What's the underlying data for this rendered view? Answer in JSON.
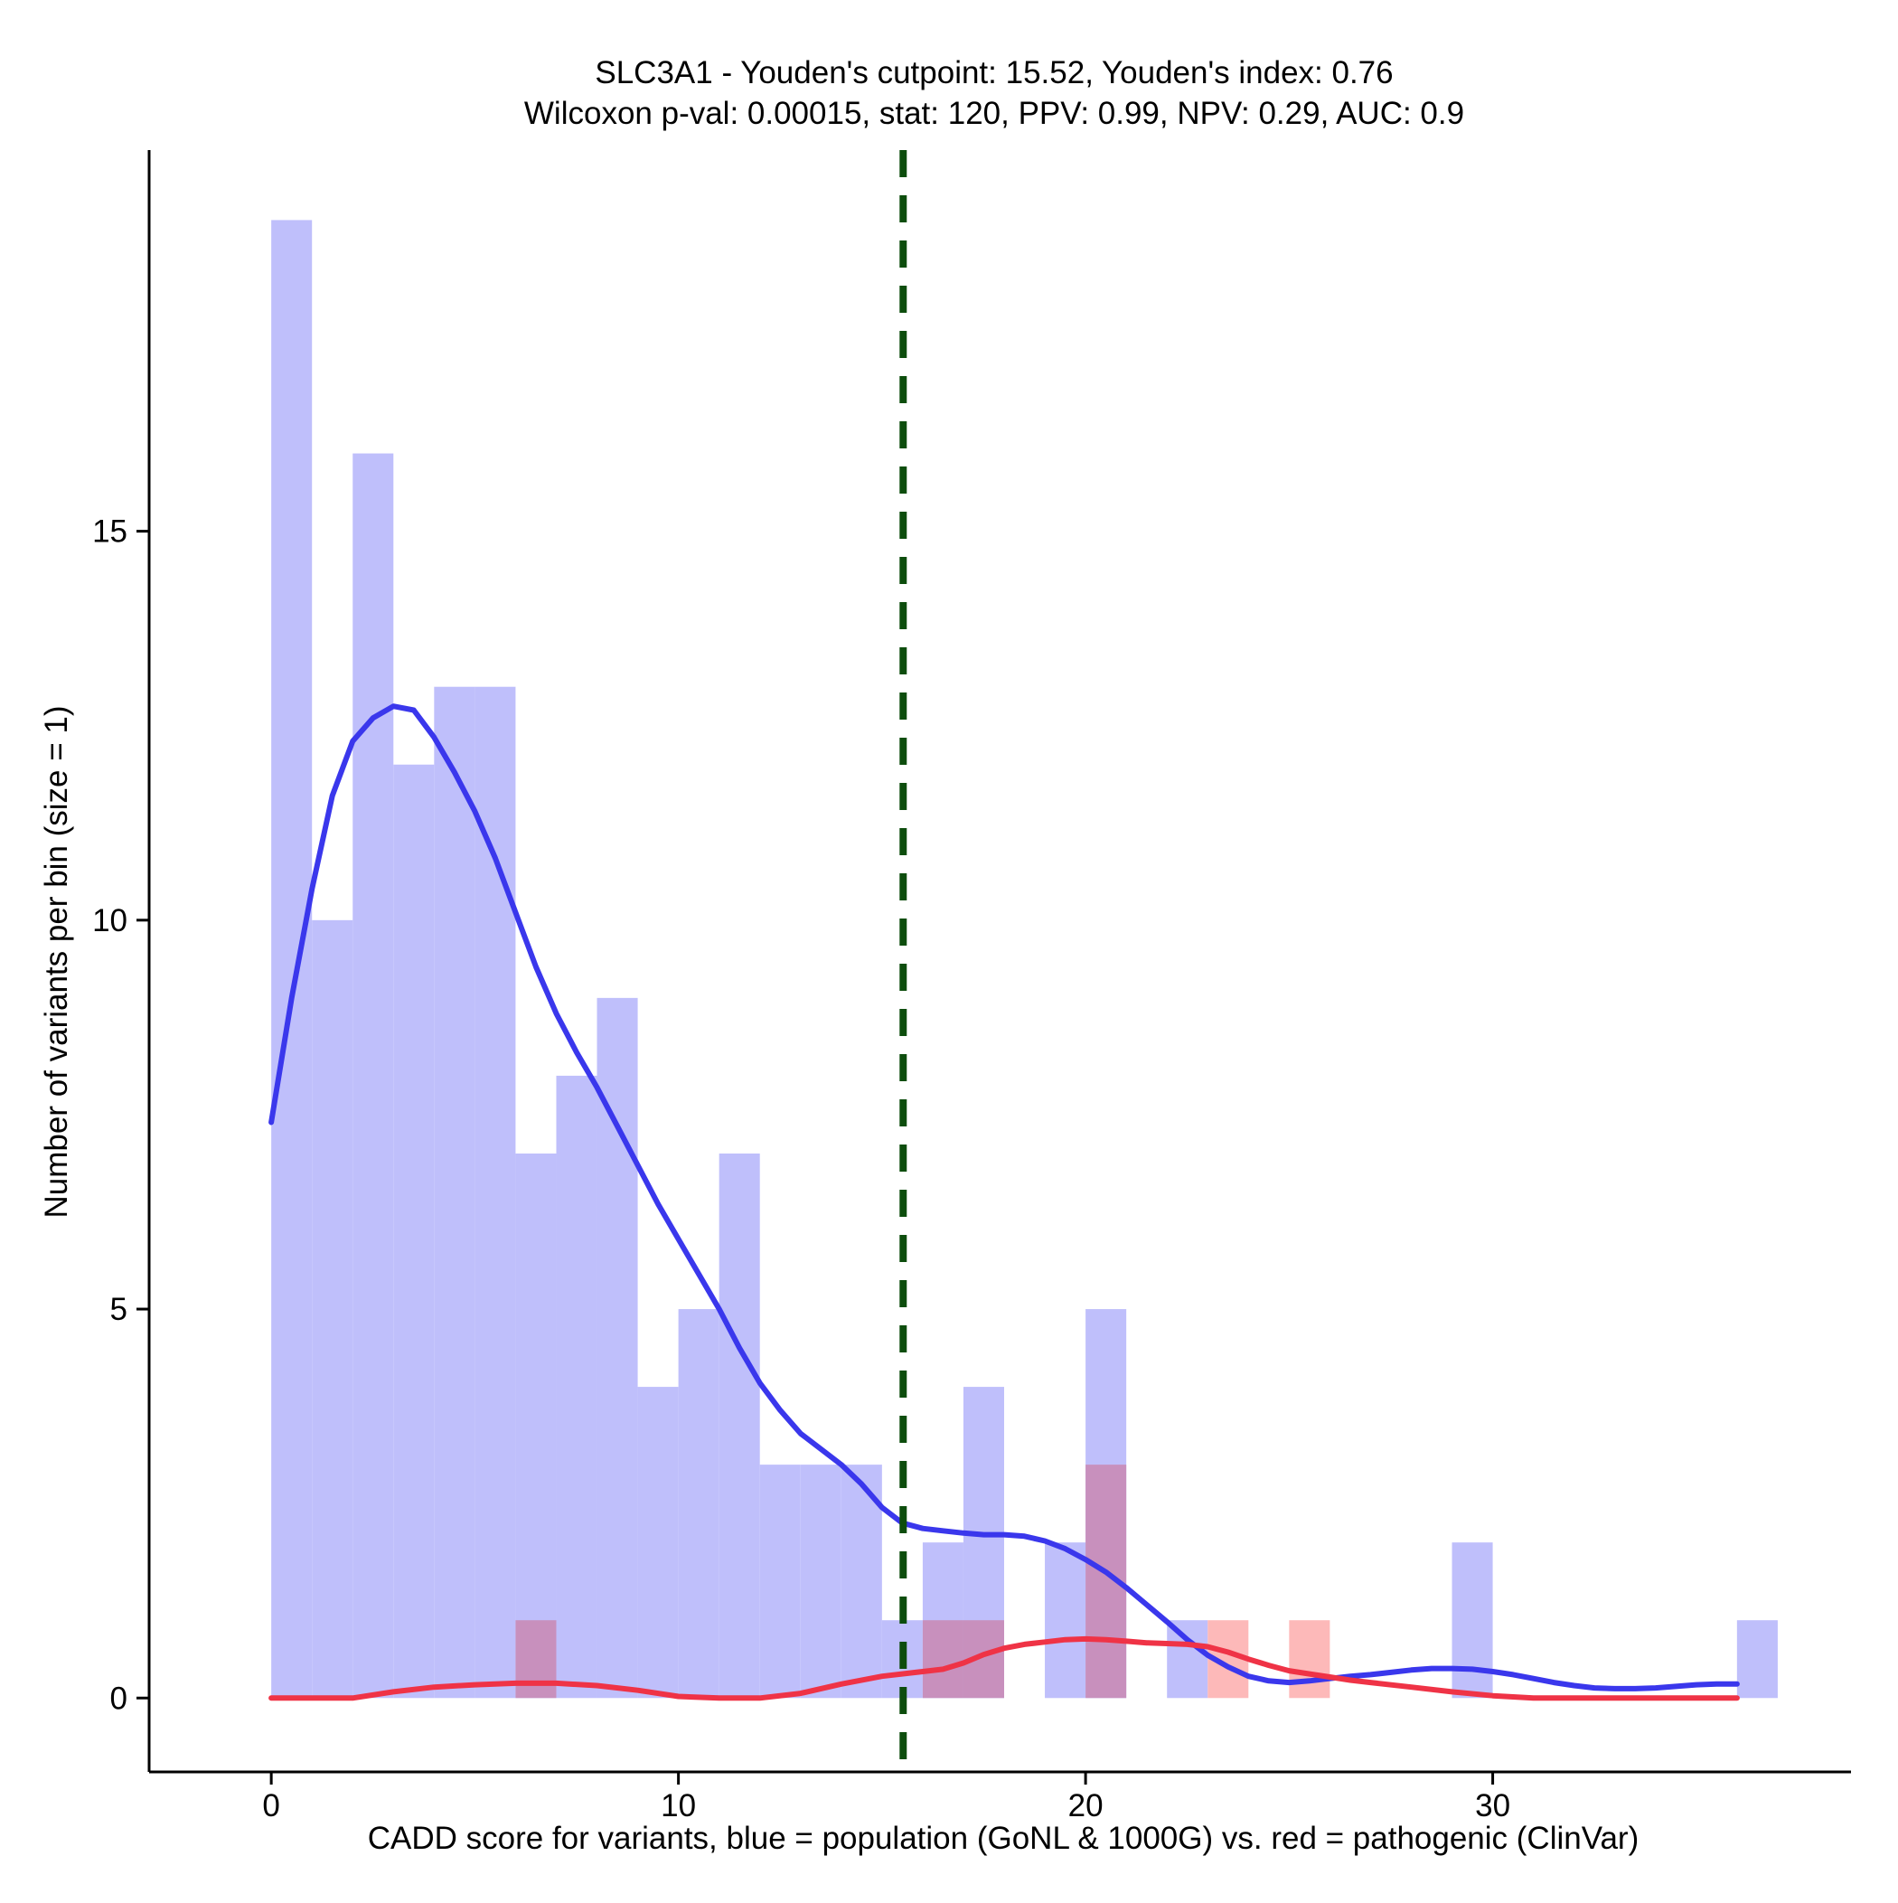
{
  "chart_data": {
    "type": "histogram",
    "title_line1": "SLC3A1 - Youden's cutpoint: 15.52, Youden's index: 0.76",
    "title_line2": "Wilcoxon p-val: 0.00015, stat: 120, PPV: 0.99, NPV: 0.29, AUC: 0.9",
    "xlabel": "CADD score for variants, blue = population (GoNL & 1000G) vs. red = pathogenic (ClinVar)",
    "ylabel": "Number of variants per bin (size = 1)",
    "xlim": [
      -3,
      38.8
    ],
    "ylim": [
      -0.95,
      19.9
    ],
    "x_ticks": [
      0,
      10,
      20,
      30
    ],
    "y_ticks": [
      0,
      5,
      10,
      15
    ],
    "cutpoint": 15.52,
    "bin_size": 1,
    "colors": {
      "population_bar": "#bfbffb",
      "pathogenic_bar": "#fdb9b9",
      "overlap_bar": "#c890bd",
      "population_line": "#3a37ec",
      "pathogenic_line": "#ef3346",
      "cutpoint_line": "#0d4d0d",
      "axis": "#000000"
    },
    "series": [
      {
        "name": "population (GoNL & 1000G)",
        "bins": [
          {
            "x0": 0,
            "count": 19
          },
          {
            "x0": 1,
            "count": 10
          },
          {
            "x0": 2,
            "count": 16
          },
          {
            "x0": 3,
            "count": 12
          },
          {
            "x0": 4,
            "count": 13
          },
          {
            "x0": 5,
            "count": 13
          },
          {
            "x0": 6,
            "count": 7
          },
          {
            "x0": 7,
            "count": 8
          },
          {
            "x0": 8,
            "count": 9
          },
          {
            "x0": 9,
            "count": 4
          },
          {
            "x0": 10,
            "count": 5
          },
          {
            "x0": 11,
            "count": 7
          },
          {
            "x0": 12,
            "count": 3
          },
          {
            "x0": 13,
            "count": 3
          },
          {
            "x0": 14,
            "count": 3
          },
          {
            "x0": 15,
            "count": 1
          },
          {
            "x0": 16,
            "count": 2
          },
          {
            "x0": 17,
            "count": 4
          },
          {
            "x0": 19,
            "count": 2
          },
          {
            "x0": 20,
            "count": 5
          },
          {
            "x0": 22,
            "count": 1
          },
          {
            "x0": 29,
            "count": 2
          },
          {
            "x0": 36,
            "count": 1
          }
        ],
        "density_curve": [
          [
            0,
            7.4
          ],
          [
            0.5,
            9.0
          ],
          [
            1.0,
            10.4
          ],
          [
            1.5,
            11.6
          ],
          [
            2.0,
            12.3
          ],
          [
            2.5,
            12.6
          ],
          [
            3.0,
            12.75
          ],
          [
            3.5,
            12.7
          ],
          [
            4.0,
            12.35
          ],
          [
            4.5,
            11.9
          ],
          [
            5.0,
            11.4
          ],
          [
            5.5,
            10.8
          ],
          [
            6.0,
            10.1
          ],
          [
            6.5,
            9.4
          ],
          [
            7.0,
            8.8
          ],
          [
            7.5,
            8.3
          ],
          [
            8.0,
            7.85
          ],
          [
            8.5,
            7.35
          ],
          [
            9.0,
            6.85
          ],
          [
            9.5,
            6.35
          ],
          [
            10.0,
            5.9
          ],
          [
            10.5,
            5.45
          ],
          [
            11.0,
            5.0
          ],
          [
            11.5,
            4.5
          ],
          [
            12.0,
            4.05
          ],
          [
            12.5,
            3.7
          ],
          [
            13.0,
            3.4
          ],
          [
            13.5,
            3.2
          ],
          [
            14.0,
            3.0
          ],
          [
            14.5,
            2.75
          ],
          [
            15.0,
            2.45
          ],
          [
            15.5,
            2.25
          ],
          [
            16.0,
            2.18
          ],
          [
            16.5,
            2.15
          ],
          [
            17.0,
            2.12
          ],
          [
            17.5,
            2.1
          ],
          [
            18.0,
            2.1
          ],
          [
            18.5,
            2.08
          ],
          [
            19.0,
            2.02
          ],
          [
            19.5,
            1.92
          ],
          [
            20.0,
            1.78
          ],
          [
            20.5,
            1.62
          ],
          [
            21.0,
            1.42
          ],
          [
            21.5,
            1.2
          ],
          [
            22.0,
            0.98
          ],
          [
            22.5,
            0.75
          ],
          [
            23.0,
            0.55
          ],
          [
            23.5,
            0.4
          ],
          [
            24.0,
            0.28
          ],
          [
            24.5,
            0.22
          ],
          [
            25.0,
            0.2
          ],
          [
            25.5,
            0.22
          ],
          [
            26.0,
            0.25
          ],
          [
            26.5,
            0.28
          ],
          [
            27.0,
            0.3
          ],
          [
            27.5,
            0.33
          ],
          [
            28.0,
            0.36
          ],
          [
            28.5,
            0.38
          ],
          [
            29.0,
            0.38
          ],
          [
            29.5,
            0.37
          ],
          [
            30.0,
            0.34
          ],
          [
            30.5,
            0.3
          ],
          [
            31.0,
            0.25
          ],
          [
            31.5,
            0.2
          ],
          [
            32.0,
            0.16
          ],
          [
            32.5,
            0.13
          ],
          [
            33.0,
            0.12
          ],
          [
            33.5,
            0.12
          ],
          [
            34.0,
            0.13
          ],
          [
            34.5,
            0.15
          ],
          [
            35.0,
            0.17
          ],
          [
            35.5,
            0.18
          ],
          [
            36.0,
            0.18
          ]
        ]
      },
      {
        "name": "pathogenic (ClinVar)",
        "bins": [
          {
            "x0": 6,
            "count": 1
          },
          {
            "x0": 16,
            "count": 1
          },
          {
            "x0": 17,
            "count": 1
          },
          {
            "x0": 20,
            "count": 3
          },
          {
            "x0": 23,
            "count": 1
          },
          {
            "x0": 25,
            "count": 1
          }
        ],
        "density_curve": [
          [
            0,
            0.0
          ],
          [
            2.0,
            0.0
          ],
          [
            3.0,
            0.08
          ],
          [
            4.0,
            0.14
          ],
          [
            5.0,
            0.17
          ],
          [
            6.0,
            0.19
          ],
          [
            7.0,
            0.19
          ],
          [
            8.0,
            0.16
          ],
          [
            9.0,
            0.1
          ],
          [
            10.0,
            0.02
          ],
          [
            11.0,
            0.0
          ],
          [
            12.0,
            0.0
          ],
          [
            13.0,
            0.06
          ],
          [
            14.0,
            0.18
          ],
          [
            15.0,
            0.28
          ],
          [
            16.0,
            0.34
          ],
          [
            16.5,
            0.37
          ],
          [
            17.0,
            0.45
          ],
          [
            17.5,
            0.56
          ],
          [
            18.0,
            0.64
          ],
          [
            18.5,
            0.69
          ],
          [
            19.0,
            0.72
          ],
          [
            19.5,
            0.75
          ],
          [
            20.0,
            0.76
          ],
          [
            20.5,
            0.75
          ],
          [
            21.0,
            0.73
          ],
          [
            21.5,
            0.71
          ],
          [
            22.0,
            0.7
          ],
          [
            22.5,
            0.69
          ],
          [
            23.0,
            0.66
          ],
          [
            23.5,
            0.59
          ],
          [
            24.0,
            0.5
          ],
          [
            24.5,
            0.42
          ],
          [
            25.0,
            0.35
          ],
          [
            25.5,
            0.31
          ],
          [
            26.0,
            0.27
          ],
          [
            26.5,
            0.23
          ],
          [
            27.0,
            0.2
          ],
          [
            28.0,
            0.14
          ],
          [
            29.0,
            0.08
          ],
          [
            30.0,
            0.03
          ],
          [
            31.0,
            0.0
          ],
          [
            36.0,
            0.0
          ]
        ]
      }
    ]
  }
}
